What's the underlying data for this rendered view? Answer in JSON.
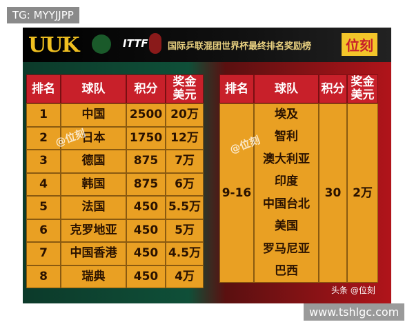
{
  "watermark_top": "TG: MYYJJPP",
  "banner": {
    "logo": "UUK",
    "ittf": "ITTF",
    "title": "国际乒联混团世界杯最终排名奖励榜",
    "badge": "位刻"
  },
  "left_table": {
    "headers": [
      "排名",
      "球队",
      "积分",
      "奖金\n美元"
    ],
    "rows": [
      [
        1,
        "中国",
        2500,
        "20万"
      ],
      [
        2,
        "日本",
        1750,
        "12万"
      ],
      [
        3,
        "德国",
        875,
        "7万"
      ],
      [
        4,
        "韩国",
        875,
        "6万"
      ],
      [
        5,
        "法国",
        450,
        "5.5万"
      ],
      [
        6,
        "克罗地亚",
        450,
        "5万"
      ],
      [
        7,
        "中国香港",
        450,
        "4.5万"
      ],
      [
        8,
        "瑞典",
        450,
        "4万"
      ]
    ],
    "watermark": "@位刻"
  },
  "right_table": {
    "headers": [
      "排名",
      "球队",
      "积分",
      "奖金\n美元"
    ],
    "rank": "9-16",
    "teams": [
      "埃及",
      "智利",
      "澳大利亚",
      "印度",
      "中国台北",
      "美国",
      "罗马尼亚",
      "巴西"
    ],
    "points": 30,
    "prize": "2万",
    "watermark": "@位刻"
  },
  "footer_credit": "头条 @位刻",
  "watermark_bottom": "www.tshlgc.com"
}
